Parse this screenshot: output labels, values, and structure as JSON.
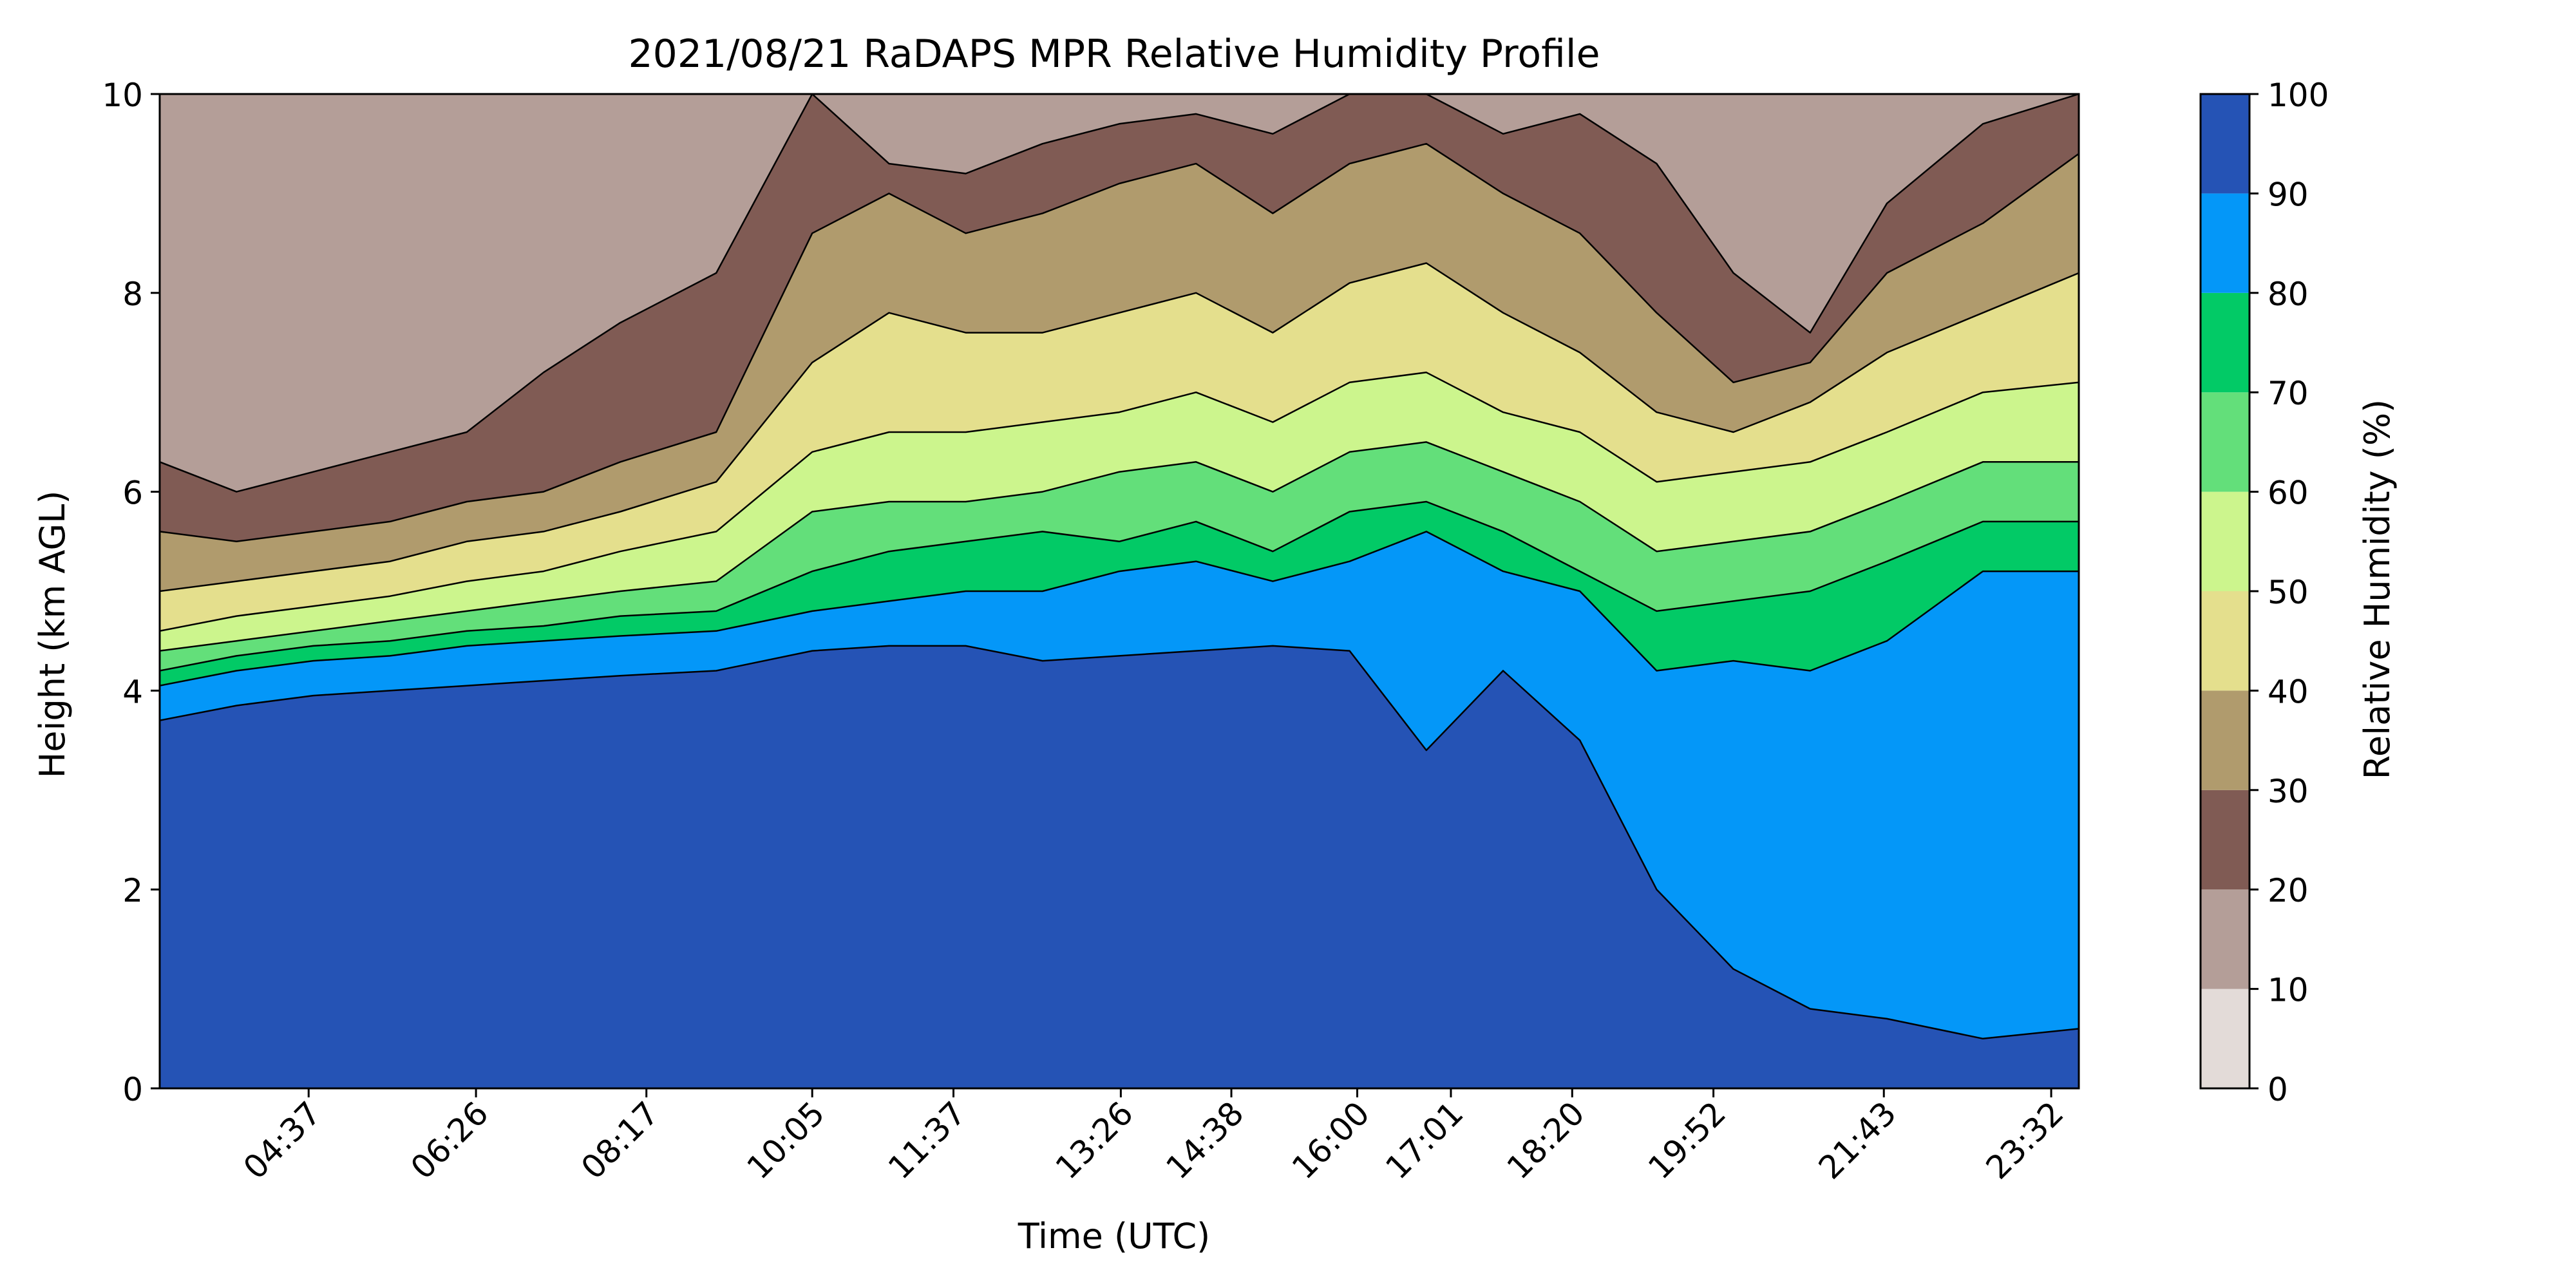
{
  "chart_data": {
    "type": "heatmap",
    "subtype": "filled-contour",
    "title": "2021/08/21 RaDAPS MPR Relative Humidity Profile",
    "xlabel": "Time (UTC)",
    "ylabel": "Height (km AGL)",
    "colorbar_label": "Relative Humidity (%)",
    "xlim": [
      "03:00",
      "23:50"
    ],
    "ylim": [
      0,
      10
    ],
    "x_ticks": [
      "04:37",
      "06:26",
      "08:17",
      "10:05",
      "11:37",
      "13:26",
      "14:38",
      "16:00",
      "17:01",
      "18:20",
      "19:52",
      "21:43",
      "23:32"
    ],
    "y_ticks": [
      "0",
      "2",
      "4",
      "6",
      "8",
      "10"
    ],
    "levels": [
      0,
      10,
      20,
      30,
      40,
      50,
      60,
      70,
      80,
      90,
      100
    ],
    "level_labels": [
      "0",
      "10",
      "20",
      "30",
      "40",
      "50",
      "60",
      "70",
      "80",
      "90",
      "100"
    ],
    "level_colors": [
      "#e3dbd8",
      "#b49e98",
      "#805b54",
      "#b09b6d",
      "#e4df8d",
      "#ccf58d",
      "#63df7a",
      "#02ca66",
      "#0497f8",
      "#2553b5"
    ],
    "grid": false,
    "colorbar_position": "right",
    "isolines_km": {
      "RH_90": [
        3.7,
        3.85,
        3.95,
        4.0,
        4.05,
        4.1,
        4.15,
        4.2,
        4.4,
        4.45,
        4.45,
        4.3,
        4.35,
        4.4,
        4.45,
        4.4,
        3.4,
        4.2,
        3.5,
        2.0,
        1.2,
        0.8,
        0.7,
        0.5,
        0.6
      ],
      "RH_80": [
        4.05,
        4.2,
        4.3,
        4.35,
        4.45,
        4.5,
        4.55,
        4.6,
        4.8,
        4.9,
        5.0,
        5.0,
        5.2,
        5.3,
        5.1,
        5.3,
        5.6,
        5.2,
        5.0,
        4.2,
        4.3,
        4.2,
        4.5,
        5.2,
        5.2
      ],
      "RH_70": [
        4.2,
        4.35,
        4.45,
        4.5,
        4.6,
        4.65,
        4.75,
        4.8,
        5.2,
        5.4,
        5.5,
        5.6,
        5.5,
        5.7,
        5.4,
        5.8,
        5.9,
        5.6,
        5.2,
        4.8,
        4.9,
        5.0,
        5.3,
        5.7,
        5.7
      ],
      "RH_60": [
        4.4,
        4.5,
        4.6,
        4.7,
        4.8,
        4.9,
        5.0,
        5.1,
        5.8,
        5.9,
        5.9,
        6.0,
        6.2,
        6.3,
        6.0,
        6.4,
        6.5,
        6.2,
        5.9,
        5.4,
        5.5,
        5.6,
        5.9,
        6.3,
        6.3
      ],
      "RH_50": [
        4.6,
        4.75,
        4.85,
        4.95,
        5.1,
        5.2,
        5.4,
        5.6,
        6.4,
        6.6,
        6.6,
        6.7,
        6.8,
        7.0,
        6.7,
        7.1,
        7.2,
        6.8,
        6.6,
        6.1,
        6.2,
        6.3,
        6.6,
        7.0,
        7.1
      ],
      "RH_40": [
        5.0,
        5.1,
        5.2,
        5.3,
        5.5,
        5.6,
        5.8,
        6.1,
        7.3,
        7.8,
        7.6,
        7.6,
        7.8,
        8.0,
        7.6,
        8.1,
        8.3,
        7.8,
        7.4,
        6.8,
        6.6,
        6.9,
        7.4,
        7.8,
        8.2
      ],
      "RH_30": [
        5.6,
        5.5,
        5.6,
        5.7,
        5.9,
        6.0,
        6.3,
        6.6,
        8.6,
        9.0,
        8.6,
        8.8,
        9.1,
        9.3,
        8.8,
        9.3,
        9.5,
        9.0,
        8.6,
        7.8,
        7.1,
        7.3,
        8.2,
        8.7,
        9.4
      ],
      "RH_20": [
        6.3,
        6.0,
        6.2,
        6.4,
        6.6,
        7.2,
        7.7,
        8.2,
        10.0,
        9.3,
        9.2,
        9.5,
        9.7,
        9.8,
        9.6,
        10.0,
        10.0,
        9.6,
        9.8,
        9.3,
        8.2,
        7.6,
        8.9,
        9.7,
        10.0
      ]
    },
    "isoline_times_frac": [
      0.0,
      0.04,
      0.08,
      0.12,
      0.16,
      0.2,
      0.24,
      0.29,
      0.34,
      0.38,
      0.42,
      0.46,
      0.5,
      0.54,
      0.58,
      0.62,
      0.66,
      0.7,
      0.74,
      0.78,
      0.82,
      0.86,
      0.9,
      0.95,
      1.0
    ]
  }
}
